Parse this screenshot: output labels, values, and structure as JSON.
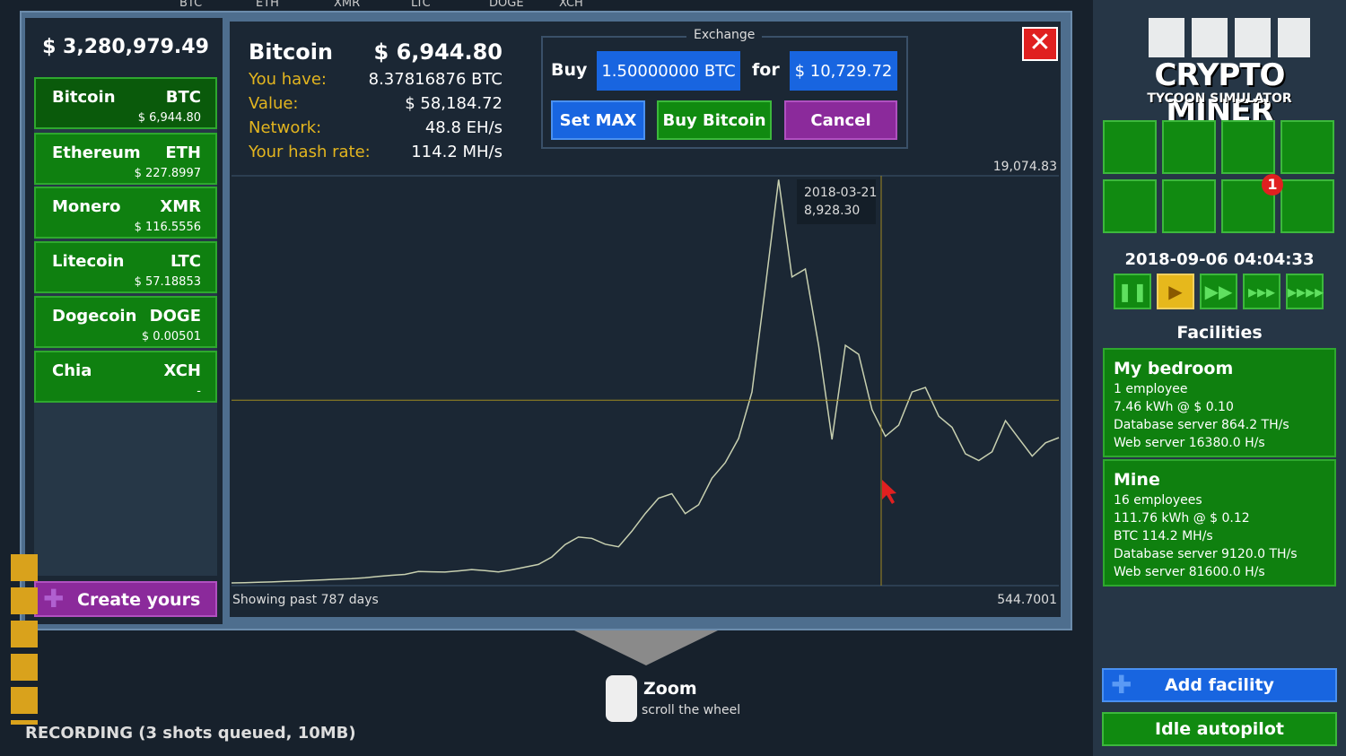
{
  "background_tickers": [
    "BTC",
    "ETH",
    "XMR",
    "LTC",
    "DOGE",
    "XCH"
  ],
  "wallet": {
    "balance": "$ 3,280,979.49"
  },
  "coins": [
    {
      "name": "Bitcoin",
      "symbol": "BTC",
      "price": "$ 6,944.80"
    },
    {
      "name": "Ethereum",
      "symbol": "ETH",
      "price": "$ 227.8997"
    },
    {
      "name": "Monero",
      "symbol": "XMR",
      "price": "$ 116.5556"
    },
    {
      "name": "Litecoin",
      "symbol": "LTC",
      "price": "$ 57.18853"
    },
    {
      "name": "Dogecoin",
      "symbol": "DOGE",
      "price": "$ 0.00501"
    },
    {
      "name": "Chia",
      "symbol": "XCH",
      "price": "-"
    }
  ],
  "create_button": "Create yours",
  "info": {
    "name": "Bitcoin",
    "price": "$ 6,944.80",
    "rows": [
      {
        "label": "You have:",
        "value": "8.37816876 BTC"
      },
      {
        "label": "Value:",
        "value": "$ 58,184.72"
      },
      {
        "label": "Network:",
        "value": "48.8 EH/s"
      },
      {
        "label": "Your hash rate:",
        "value": "114.2 MH/s"
      }
    ]
  },
  "exchange": {
    "title": "Exchange",
    "buy_label": "Buy",
    "amount": "1.50000000 BTC",
    "for_label": "for",
    "cost": "$ 10,729.72",
    "buttons": [
      "Set MAX",
      "Buy Bitcoin",
      "Cancel"
    ]
  },
  "chart": {
    "type": "line",
    "color": "#c8d0b0",
    "values": [
      666,
      680,
      695,
      710,
      735,
      760,
      785,
      810,
      835,
      860,
      900,
      960,
      1010,
      1050,
      1180,
      1170,
      1155,
      1210,
      1270,
      1220,
      1160,
      1260,
      1380,
      1500,
      1840,
      2400,
      2740,
      2680,
      2420,
      2300,
      3000,
      3800,
      4500,
      4700,
      3800,
      4200,
      5400,
      6100,
      7200,
      9300,
      14000,
      18900,
      14500,
      14859,
      11400,
      7155,
      11413,
      11000,
      8500,
      7300,
      7800,
      9300,
      9500,
      8200,
      7700,
      6500,
      6200,
      6600,
      8000,
      7200,
      6400,
      7000,
      7236
    ],
    "ylim": [
      544.7001,
      19074.83
    ],
    "yticks": [
      {
        "value": 19074.83,
        "label": "19,074.83"
      },
      544.7001
    ],
    "crosshair": {
      "date": "2018-03-21",
      "value": 8928.3,
      "label": "8,928.30"
    },
    "footer": "Showing past 787 days"
  },
  "sidebar": {
    "logo_title": "CRYPTO MINER",
    "logo_subtitle": "TYCOON SIMULATOR",
    "badge": "1",
    "datetime": "2018-09-06 04:04:33",
    "facilities_title": "Facilities",
    "facilities": [
      {
        "name": "My bedroom",
        "lines": [
          "1 employee",
          "7.46 kWh @ $ 0.10",
          "Database server 864.2 TH/s",
          "Web server 16380.0 H/s"
        ]
      },
      {
        "name": "Mine",
        "lines": [
          "16 employees",
          "111.76 kWh @ $ 0.12",
          "BTC 114.2 MH/s",
          "Database server 9120.0 TH/s",
          "Web server 81600.0 H/s"
        ]
      }
    ],
    "add_facility": "Add facility",
    "idle_autopilot": "Idle autopilot"
  },
  "hint": {
    "title": "Zoom",
    "text": "scroll the wheel"
  },
  "status": "RECORDING (3 shots queued, 10MB)"
}
